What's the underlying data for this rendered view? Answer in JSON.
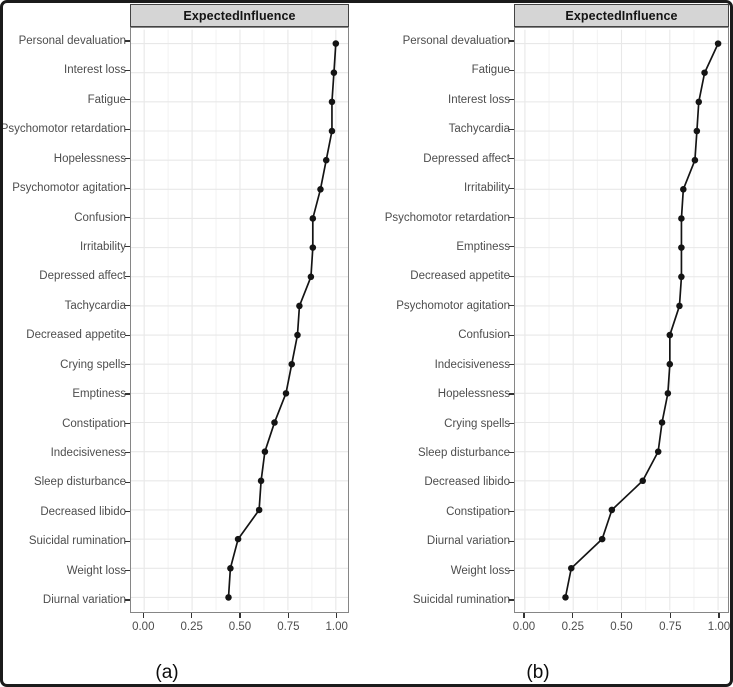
{
  "style": {
    "frame_border": "#1b1b1b",
    "strip_fill": "#d5d5d5",
    "strip_border": "#434343",
    "panel_border": "#868686",
    "grid_major": "#e8e8e8",
    "grid_minor": "#f2f2f2",
    "axis_text_color": "#4d4d4d",
    "data_color": "#141414"
  },
  "chart_data": [
    {
      "type": "line",
      "orientation": "horizontal-dot-line",
      "title": "ExpectedInfluence",
      "caption": "(a)",
      "xlabel": "",
      "ylabel": "",
      "xlim": [
        0,
        1
      ],
      "x_ticks": [
        0,
        0.25,
        0.5,
        0.75,
        1
      ],
      "x_tick_labels": [
        "0.00",
        "0.25",
        "0.50",
        "0.75",
        "1.00"
      ],
      "x_minor_ticks": [
        0.125,
        0.375,
        0.625,
        0.875
      ],
      "grid": true,
      "legend": false,
      "categories": [
        "Personal devaluation",
        "Interest loss",
        "Fatigue",
        "Psychomotor retardation",
        "Hopelessness",
        "Psychomotor agitation",
        "Confusion",
        "Irritability",
        "Depressed affect",
        "Tachycardia",
        "Decreased appetite",
        "Crying spells",
        "Emptiness",
        "Constipation",
        "Indecisiveness",
        "Sleep disturbance",
        "Decreased libido",
        "Suicidal rumination",
        "Weight loss",
        "Diurnal variation"
      ],
      "values": [
        1.0,
        0.99,
        0.98,
        0.98,
        0.95,
        0.92,
        0.88,
        0.88,
        0.87,
        0.81,
        0.8,
        0.77,
        0.74,
        0.68,
        0.63,
        0.61,
        0.6,
        0.49,
        0.45,
        0.44
      ]
    },
    {
      "type": "line",
      "orientation": "horizontal-dot-line",
      "title": "ExpectedInfluence",
      "caption": "(b)",
      "xlabel": "",
      "ylabel": "",
      "xlim": [
        0,
        1
      ],
      "x_ticks": [
        0,
        0.25,
        0.5,
        0.75,
        1
      ],
      "x_tick_labels": [
        "0.00",
        "0.25",
        "0.50",
        "0.75",
        "1.00"
      ],
      "x_minor_ticks": [
        0.125,
        0.375,
        0.625,
        0.875
      ],
      "grid": true,
      "legend": false,
      "categories": [
        "Personal devaluation",
        "Fatigue",
        "Interest loss",
        "Tachycardia",
        "Depressed affect",
        "Irritability",
        "Psychomotor retardation",
        "Emptiness",
        "Decreased appetite",
        "Psychomotor agitation",
        "Confusion",
        "Indecisiveness",
        "Hopelessness",
        "Crying spells",
        "Sleep disturbance",
        "Decreased libido",
        "Constipation",
        "Diurnal variation",
        "Weight loss",
        "Suicidal rumination"
      ],
      "values": [
        1.0,
        0.93,
        0.9,
        0.89,
        0.88,
        0.82,
        0.81,
        0.81,
        0.81,
        0.8,
        0.75,
        0.75,
        0.74,
        0.71,
        0.69,
        0.61,
        0.45,
        0.4,
        0.24,
        0.21
      ]
    }
  ]
}
